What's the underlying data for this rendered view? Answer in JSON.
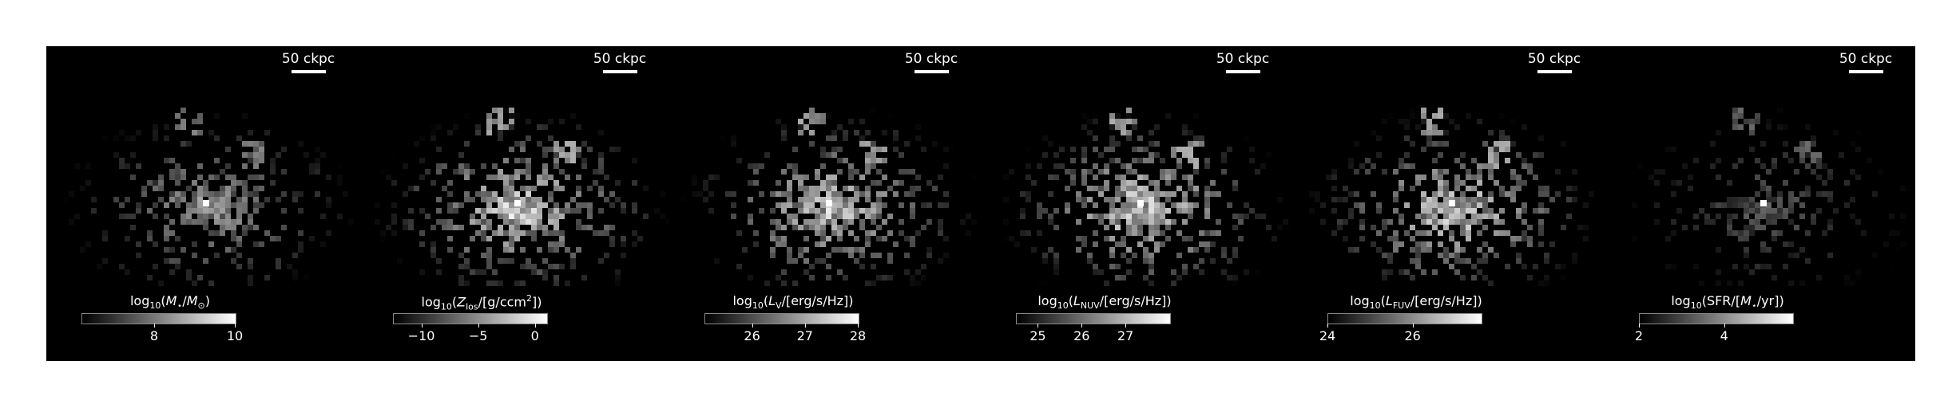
{
  "panels": [
    {
      "id": "stellar-mass",
      "scalebar": "50 ckpc",
      "colorbar_label": {
        "prefix": "log",
        "base": "10",
        "open": "(",
        "main": "M",
        "main_sub": "⋆",
        "slash": "/",
        "denom": "M",
        "denom_sub": "⊙",
        "close": ")"
      },
      "range": [
        6.2,
        10.0
      ],
      "ticks": [
        {
          "value": 8,
          "label": "8"
        },
        {
          "value": 10,
          "label": "10"
        }
      ],
      "brightness": 0.6,
      "concentration": 0.85
    },
    {
      "id": "metallicity",
      "scalebar": "50 ckpc",
      "colorbar_label": {
        "prefix": "log",
        "base": "10",
        "open": "(",
        "main": "Z",
        "main_sub": "los",
        "slash": "/[g/ccm",
        "denom": "",
        "denom_sub": "",
        "sup": "2",
        "close": "])"
      },
      "range": [
        -12.5,
        1.0
      ],
      "ticks": [
        {
          "value": -10,
          "label": "−10"
        },
        {
          "value": -5,
          "label": "−5"
        },
        {
          "value": 0,
          "label": "0"
        }
      ],
      "brightness": 0.85,
      "concentration": 0.4
    },
    {
      "id": "v-band",
      "scalebar": "50 ckpc",
      "colorbar_label": {
        "prefix": "log",
        "base": "10",
        "open": "(",
        "main": "L",
        "main_sub": "V",
        "slash": "/[erg/s/Hz])",
        "denom": "",
        "denom_sub": "",
        "close": ""
      },
      "range": [
        25.1,
        28.0
      ],
      "ticks": [
        {
          "value": 26,
          "label": "26"
        },
        {
          "value": 27,
          "label": "27"
        },
        {
          "value": 28,
          "label": "28"
        }
      ],
      "brightness": 0.8,
      "concentration": 0.6
    },
    {
      "id": "nuv-band",
      "scalebar": "50 ckpc",
      "colorbar_label": {
        "prefix": "log",
        "base": "10",
        "open": "(",
        "main": "L",
        "main_sub": "NUV",
        "slash": "/[erg/s/Hz])",
        "denom": "",
        "denom_sub": "",
        "close": ""
      },
      "range": [
        24.5,
        28.0
      ],
      "ticks": [
        {
          "value": 25,
          "label": "25"
        },
        {
          "value": 26,
          "label": "26"
        },
        {
          "value": 27,
          "label": "27"
        }
      ],
      "brightness": 0.85,
      "concentration": 0.5
    },
    {
      "id": "fuv-band",
      "scalebar": "50 ckpc",
      "colorbar_label": {
        "prefix": "log",
        "base": "10",
        "open": "(",
        "main": "L",
        "main_sub": "FUV",
        "slash": "/[erg/s/Hz])",
        "denom": "",
        "denom_sub": "",
        "close": ""
      },
      "range": [
        24.0,
        27.6
      ],
      "ticks": [
        {
          "value": 24,
          "label": "24"
        },
        {
          "value": 26,
          "label": "26"
        }
      ],
      "brightness": 0.85,
      "concentration": 0.5
    },
    {
      "id": "sfr",
      "scalebar": "50 ckpc",
      "colorbar_label": {
        "prefix": "log",
        "base": "10",
        "open": "(SFR/[",
        "main": "M",
        "main_sub": "⋆",
        "slash": "/yr])",
        "denom": "",
        "denom_sub": "",
        "close": ""
      },
      "range": [
        2.0,
        5.6
      ],
      "ticks": [
        {
          "value": 2,
          "label": "2"
        },
        {
          "value": 4,
          "label": "4"
        }
      ],
      "brightness": 0.35,
      "concentration": 0.9
    }
  ]
}
